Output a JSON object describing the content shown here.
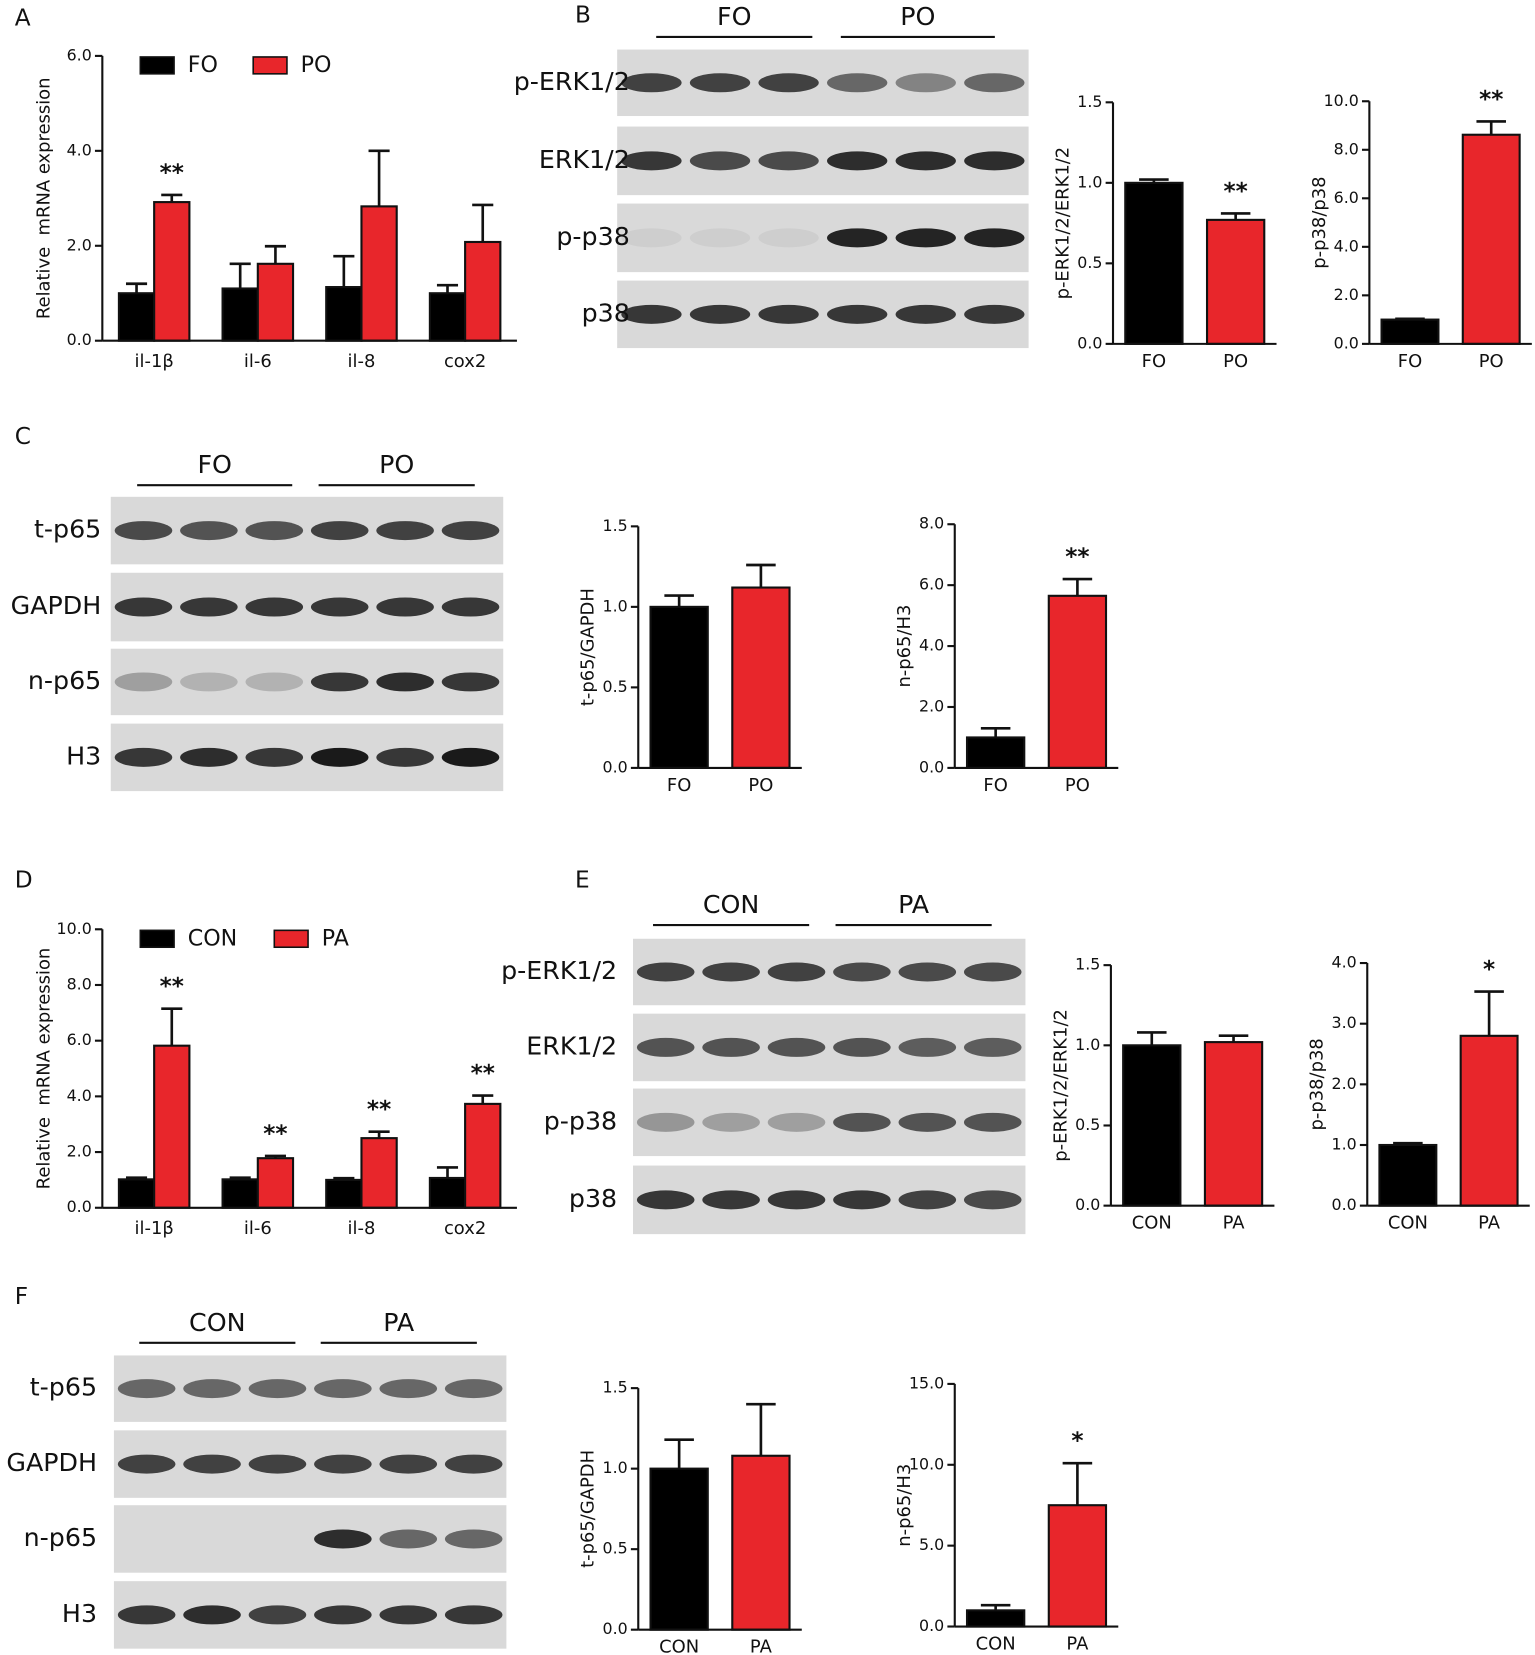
{
  "chart_data": [
    {
      "type": "grouped_bar",
      "panel": "A",
      "ylabel": "Relative  mRNA expression",
      "categories": [
        "il-1β",
        "il-6",
        "il-8",
        "cox2"
      ],
      "series": [
        {
          "name": "FO",
          "color": "#000000",
          "values": [
            1.0,
            1.1,
            1.13,
            1.0
          ],
          "errors": [
            0.2,
            0.52,
            0.65,
            0.17
          ],
          "significance": [
            null,
            null,
            null,
            null
          ]
        },
        {
          "name": "PO",
          "color": "#e8262b",
          "values": [
            2.92,
            1.62,
            2.83,
            2.08
          ],
          "errors": [
            0.15,
            0.37,
            1.17,
            0.78
          ],
          "significance": [
            "**",
            null,
            null,
            null
          ]
        }
      ],
      "ylim": [
        0,
        6
      ],
      "yticks": [
        {
          "value": 0,
          "label": "0.0"
        },
        {
          "value": 2,
          "label": "2.0"
        },
        {
          "value": 4,
          "label": "4.0"
        },
        {
          "value": 6,
          "label": "6.0"
        }
      ]
    },
    {
      "type": "bar",
      "ylabel": "p-ERK1/2/ERK1/2",
      "categories": [
        "FO",
        "PO"
      ],
      "values": [
        1.0,
        0.77
      ],
      "errors": [
        0.02,
        0.04
      ],
      "colors": [
        "#000000",
        "#e8262b"
      ],
      "significance": [
        null,
        "**"
      ],
      "ylim": [
        0,
        1.5
      ],
      "yticks": [
        {
          "value": 0,
          "label": "0.0"
        },
        {
          "value": 0.5,
          "label": "0.5"
        },
        {
          "value": 1,
          "label": "1.0"
        },
        {
          "value": 1.5,
          "label": "1.5"
        }
      ]
    },
    {
      "type": "bar",
      "ylabel": "p-p38/p38",
      "categories": [
        "FO",
        "PO"
      ],
      "values": [
        1.0,
        8.62
      ],
      "errors": [
        0.03,
        0.55
      ],
      "colors": [
        "#000000",
        "#e8262b"
      ],
      "significance": [
        null,
        "**"
      ],
      "ylim": [
        0,
        10
      ],
      "yticks": [
        {
          "value": 0,
          "label": "0.0"
        },
        {
          "value": 2,
          "label": "2.0"
        },
        {
          "value": 4,
          "label": "4.0"
        },
        {
          "value": 6,
          "label": "6.0"
        },
        {
          "value": 8,
          "label": "8.0"
        },
        {
          "value": 10,
          "label": "10.0"
        }
      ]
    },
    {
      "type": "bar",
      "ylabel": "t-p65/GAPDH",
      "categories": [
        "FO",
        "PO"
      ],
      "values": [
        1.0,
        1.12
      ],
      "errors": [
        0.07,
        0.14
      ],
      "colors": [
        "#000000",
        "#e8262b"
      ],
      "significance": [
        null,
        null
      ],
      "ylim": [
        0,
        1.5
      ],
      "yticks": [
        {
          "value": 0,
          "label": "0.0"
        },
        {
          "value": 0.5,
          "label": "0.5"
        },
        {
          "value": 1,
          "label": "1.0"
        },
        {
          "value": 1.5,
          "label": "1.5"
        }
      ]
    },
    {
      "type": "bar",
      "ylabel": "n-p65/H3",
      "categories": [
        "FO",
        "PO"
      ],
      "values": [
        1.0,
        5.65
      ],
      "errors": [
        0.3,
        0.55
      ],
      "colors": [
        "#000000",
        "#e8262b"
      ],
      "significance": [
        null,
        "**"
      ],
      "ylim": [
        0,
        8
      ],
      "yticks": [
        {
          "value": 0,
          "label": "0.0"
        },
        {
          "value": 2,
          "label": "2.0"
        },
        {
          "value": 4,
          "label": "4.0"
        },
        {
          "value": 6,
          "label": "6.0"
        },
        {
          "value": 8,
          "label": "8.0"
        }
      ]
    },
    {
      "type": "grouped_bar",
      "panel": "D",
      "ylabel": "Relative  mRNA expression",
      "categories": [
        "il-1β",
        "il-6",
        "il-8",
        "cox2"
      ],
      "series": [
        {
          "name": "CON",
          "color": "#000000",
          "values": [
            1.02,
            1.02,
            1.0,
            1.07
          ],
          "errors": [
            0.06,
            0.06,
            0.06,
            0.38
          ],
          "significance": [
            null,
            null,
            null,
            null
          ]
        },
        {
          "name": "PA",
          "color": "#e8262b",
          "values": [
            5.82,
            1.78,
            2.5,
            3.73
          ],
          "errors": [
            1.33,
            0.08,
            0.23,
            0.3
          ],
          "significance": [
            "**",
            "**",
            "**",
            "**"
          ]
        }
      ],
      "ylim": [
        0,
        10
      ],
      "yticks": [
        {
          "value": 0,
          "label": "0.0"
        },
        {
          "value": 2,
          "label": "2.0"
        },
        {
          "value": 4,
          "label": "4.0"
        },
        {
          "value": 6,
          "label": "6.0"
        },
        {
          "value": 8,
          "label": "8.0"
        },
        {
          "value": 10,
          "label": "10.0"
        }
      ]
    },
    {
      "type": "bar",
      "ylabel": "p-ERK1/2/ERK1/2",
      "categories": [
        "CON",
        "PA"
      ],
      "values": [
        1.0,
        1.02
      ],
      "errors": [
        0.08,
        0.04
      ],
      "colors": [
        "#000000",
        "#e8262b"
      ],
      "significance": [
        null,
        null
      ],
      "ylim": [
        0,
        1.5
      ],
      "yticks": [
        {
          "value": 0,
          "label": "0.0"
        },
        {
          "value": 0.5,
          "label": "0.5"
        },
        {
          "value": 1,
          "label": "1.0"
        },
        {
          "value": 1.5,
          "label": "1.5"
        }
      ]
    },
    {
      "type": "bar",
      "ylabel": "p-p38/p38",
      "categories": [
        "CON",
        "PA"
      ],
      "values": [
        1.0,
        2.8
      ],
      "errors": [
        0.03,
        0.73
      ],
      "colors": [
        "#000000",
        "#e8262b"
      ],
      "significance": [
        null,
        "*"
      ],
      "ylim": [
        0,
        4
      ],
      "yticks": [
        {
          "value": 0,
          "label": "0.0"
        },
        {
          "value": 1,
          "label": "1.0"
        },
        {
          "value": 2,
          "label": "2.0"
        },
        {
          "value": 3,
          "label": "3.0"
        },
        {
          "value": 4,
          "label": "4.0"
        }
      ]
    },
    {
      "type": "bar",
      "ylabel": "t-p65/GAPDH",
      "categories": [
        "CON",
        "PA"
      ],
      "values": [
        1.0,
        1.08
      ],
      "errors": [
        0.18,
        0.32
      ],
      "colors": [
        "#000000",
        "#e8262b"
      ],
      "significance": [
        null,
        null
      ],
      "ylim": [
        0,
        1.5
      ],
      "yticks": [
        {
          "value": 0,
          "label": "0.0"
        },
        {
          "value": 0.5,
          "label": "0.5"
        },
        {
          "value": 1,
          "label": "1.0"
        },
        {
          "value": 1.5,
          "label": "1.5"
        }
      ]
    },
    {
      "type": "bar",
      "ylabel": "n-p65/H3",
      "categories": [
        "CON",
        "PA"
      ],
      "values": [
        1.0,
        7.5
      ],
      "errors": [
        0.32,
        2.6
      ],
      "colors": [
        "#000000",
        "#e8262b"
      ],
      "significance": [
        null,
        "*"
      ],
      "ylim": [
        0,
        15
      ],
      "yticks": [
        {
          "value": 0,
          "label": "0.0"
        },
        {
          "value": 5,
          "label": "5.0"
        },
        {
          "value": 10,
          "label": "10.0"
        },
        {
          "value": 15,
          "label": "15.0"
        }
      ]
    }
  ],
  "blots": [
    {
      "panel": "B",
      "groups": [
        "FO",
        "PO"
      ],
      "rows": [
        "p-ERK1/2",
        "ERK1/2",
        "p-p38",
        "p38"
      ]
    },
    {
      "panel": "C",
      "groups": [
        "FO",
        "PO"
      ],
      "rows": [
        "t-p65",
        "GAPDH",
        "n-p65",
        "H3"
      ]
    },
    {
      "panel": "E",
      "groups": [
        "CON",
        "PA"
      ],
      "rows": [
        "p-ERK1/2",
        "ERK1/2",
        "p-p38",
        "p38"
      ]
    },
    {
      "panel": "F",
      "groups": [
        "CON",
        "PA"
      ],
      "rows": [
        "t-p65",
        "GAPDH",
        "n-p65",
        "H3"
      ]
    }
  ]
}
